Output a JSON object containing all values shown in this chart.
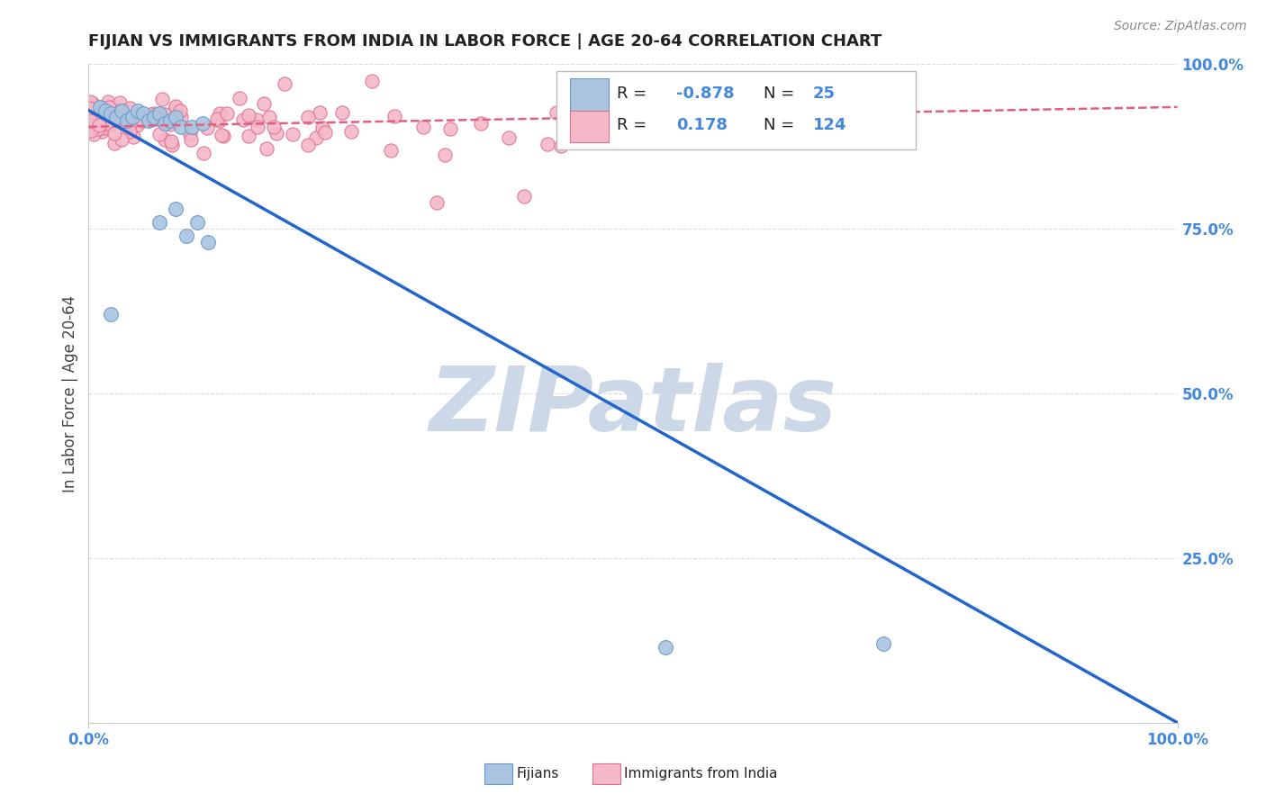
{
  "title": "FIJIAN VS IMMIGRANTS FROM INDIA IN LABOR FORCE | AGE 20-64 CORRELATION CHART",
  "source": "Source: ZipAtlas.com",
  "ylabel": "In Labor Force | Age 20-64",
  "xlim": [
    0.0,
    1.0
  ],
  "ylim": [
    0.0,
    1.0
  ],
  "y_tick_positions": [
    1.0,
    0.75,
    0.5,
    0.25
  ],
  "y_tick_labels": [
    "100.0%",
    "75.0%",
    "50.0%",
    "25.0%"
  ],
  "background_color": "#ffffff",
  "grid_color": "#dddddd",
  "fijian_color": "#aac4e0",
  "fijian_edge": "#6699cc",
  "india_color": "#f5b8c8",
  "india_edge": "#e07090",
  "fijian_line_color": "#2266cc",
  "india_line_color": "#e06080",
  "fijian_R": -0.878,
  "fijian_N": 25,
  "india_R": 0.178,
  "india_N": 124,
  "fijian_line_x0": 0.0,
  "fijian_line_y0": 0.93,
  "fijian_line_x1": 1.0,
  "fijian_line_y1": 0.0,
  "india_line_x0": 0.0,
  "india_line_y0": 0.905,
  "india_line_x1": 1.0,
  "india_line_y1": 0.935,
  "legend_fijians": "Fijians",
  "legend_india": "Immigrants from India",
  "title_color": "#222222",
  "source_color": "#888888",
  "axis_label_color": "#444444",
  "tick_color_right": "#4488dd",
  "tick_color_bottom": "#4488dd",
  "legend_text_color": "#4488dd",
  "watermark_color": "#ccd8e8",
  "watermark_text": "ZIPatlas"
}
